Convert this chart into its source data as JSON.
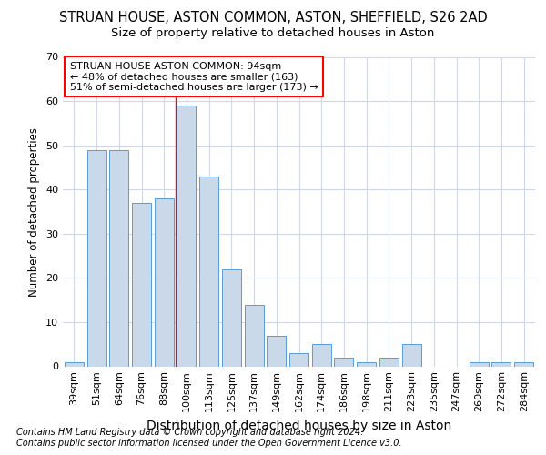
{
  "title": "STRUAN HOUSE, ASTON COMMON, ASTON, SHEFFIELD, S26 2AD",
  "subtitle": "Size of property relative to detached houses in Aston",
  "xlabel": "Distribution of detached houses by size in Aston",
  "ylabel": "Number of detached properties",
  "categories": [
    "39sqm",
    "51sqm",
    "64sqm",
    "76sqm",
    "88sqm",
    "100sqm",
    "113sqm",
    "125sqm",
    "137sqm",
    "149sqm",
    "162sqm",
    "174sqm",
    "186sqm",
    "198sqm",
    "211sqm",
    "223sqm",
    "235sqm",
    "247sqm",
    "260sqm",
    "272sqm",
    "284sqm"
  ],
  "values": [
    1,
    49,
    49,
    37,
    38,
    59,
    43,
    22,
    14,
    7,
    3,
    5,
    2,
    1,
    2,
    5,
    0,
    0,
    1,
    1,
    1
  ],
  "bar_color": "#c9d9ea",
  "bar_edge_color": "#5b9bd5",
  "red_line_x": 4.5,
  "annotation_text": "STRUAN HOUSE ASTON COMMON: 94sqm\n← 48% of detached houses are smaller (163)\n51% of semi-detached houses are larger (173) →",
  "footnote1": "Contains HM Land Registry data © Crown copyright and database right 2024.",
  "footnote2": "Contains public sector information licensed under the Open Government Licence v3.0.",
  "ylim": [
    0,
    70
  ],
  "yticks": [
    0,
    10,
    20,
    30,
    40,
    50,
    60,
    70
  ],
  "title_fontsize": 10.5,
  "subtitle_fontsize": 9.5,
  "xlabel_fontsize": 10,
  "ylabel_fontsize": 8.5,
  "tick_fontsize": 8,
  "annot_fontsize": 8,
  "footnote_fontsize": 7,
  "bg_color": "#ffffff",
  "plot_bg_color": "#ffffff",
  "grid_color": "#d0d8e8"
}
